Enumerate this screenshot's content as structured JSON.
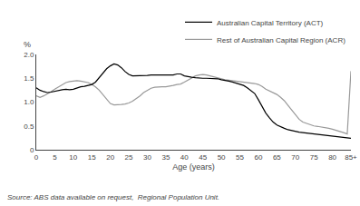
{
  "chart_data": {
    "type": "line",
    "xlabel": "Age (years)",
    "ylabel": "%",
    "source": "Source: ABS data available on request,  Regional Population Unit.",
    "x": [
      0,
      1,
      2,
      3,
      4,
      5,
      6,
      7,
      8,
      9,
      10,
      11,
      12,
      13,
      14,
      15,
      16,
      17,
      18,
      19,
      20,
      21,
      22,
      23,
      24,
      25,
      26,
      27,
      28,
      29,
      30,
      31,
      32,
      33,
      34,
      35,
      36,
      37,
      38,
      39,
      40,
      41,
      42,
      43,
      44,
      45,
      46,
      47,
      48,
      49,
      50,
      51,
      52,
      53,
      54,
      55,
      56,
      57,
      58,
      59,
      60,
      61,
      62,
      63,
      64,
      65,
      66,
      67,
      68,
      69,
      70,
      71,
      72,
      73,
      74,
      75,
      76,
      77,
      78,
      79,
      80,
      81,
      82,
      83,
      84,
      85
    ],
    "series": [
      {
        "name": "Australian Capital Territory (ACT)",
        "color": "#000000",
        "values": [
          1.3,
          1.25,
          1.22,
          1.2,
          1.21,
          1.23,
          1.24,
          1.26,
          1.27,
          1.26,
          1.27,
          1.3,
          1.32,
          1.33,
          1.35,
          1.37,
          1.42,
          1.52,
          1.62,
          1.7,
          1.76,
          1.8,
          1.78,
          1.72,
          1.64,
          1.58,
          1.55,
          1.55,
          1.56,
          1.56,
          1.56,
          1.57,
          1.57,
          1.56,
          1.56,
          1.56,
          1.57,
          1.57,
          1.59,
          1.59,
          1.55,
          1.53,
          1.52,
          1.51,
          1.5,
          1.5,
          1.5,
          1.5,
          1.5,
          1.49,
          1.47,
          1.46,
          1.44,
          1.42,
          1.4,
          1.38,
          1.35,
          1.3,
          1.24,
          1.18,
          1.05,
          0.9,
          0.77,
          0.67,
          0.58,
          0.52,
          0.48,
          0.45,
          0.42,
          0.4,
          0.38,
          0.37,
          0.36,
          0.35,
          0.34,
          0.33,
          0.32,
          0.31,
          0.3,
          0.29,
          0.28,
          0.27,
          0.26,
          0.25,
          0.24,
          0.24
        ]
      },
      {
        "name": "Rest of Australian Capital Region (ACR)",
        "color": "#999999",
        "values": [
          1.13,
          1.1,
          1.13,
          1.17,
          1.22,
          1.27,
          1.32,
          1.37,
          1.41,
          1.43,
          1.44,
          1.45,
          1.44,
          1.43,
          1.41,
          1.37,
          1.32,
          1.25,
          1.15,
          1.05,
          0.97,
          0.94,
          0.94,
          0.95,
          0.96,
          0.98,
          1.02,
          1.07,
          1.13,
          1.2,
          1.25,
          1.29,
          1.31,
          1.32,
          1.32,
          1.32,
          1.33,
          1.35,
          1.37,
          1.38,
          1.42,
          1.46,
          1.5,
          1.55,
          1.57,
          1.58,
          1.57,
          1.55,
          1.52,
          1.5,
          1.48,
          1.47,
          1.46,
          1.45,
          1.45,
          1.44,
          1.43,
          1.42,
          1.41,
          1.39,
          1.37,
          1.33,
          1.27,
          1.23,
          1.2,
          1.16,
          1.1,
          1.03,
          0.93,
          0.83,
          0.73,
          0.64,
          0.58,
          0.55,
          0.52,
          0.5,
          0.49,
          0.48,
          0.47,
          0.45,
          0.43,
          0.41,
          0.38,
          0.36,
          0.33,
          1.65
        ]
      }
    ],
    "xlim": [
      0,
      85
    ],
    "xticks": [
      0,
      5,
      10,
      15,
      20,
      25,
      30,
      35,
      40,
      45,
      50,
      55,
      60,
      65,
      70,
      75,
      80,
      {
        "value": 85,
        "label": "85+"
      }
    ],
    "ylim": [
      0,
      2.0
    ],
    "yticks": [
      0,
      0.5,
      {
        "value": 1.0,
        "label": "1.0"
      },
      1.5,
      {
        "value": 2.0,
        "label": "2.0"
      }
    ],
    "grid": false,
    "legend": "upper right"
  }
}
